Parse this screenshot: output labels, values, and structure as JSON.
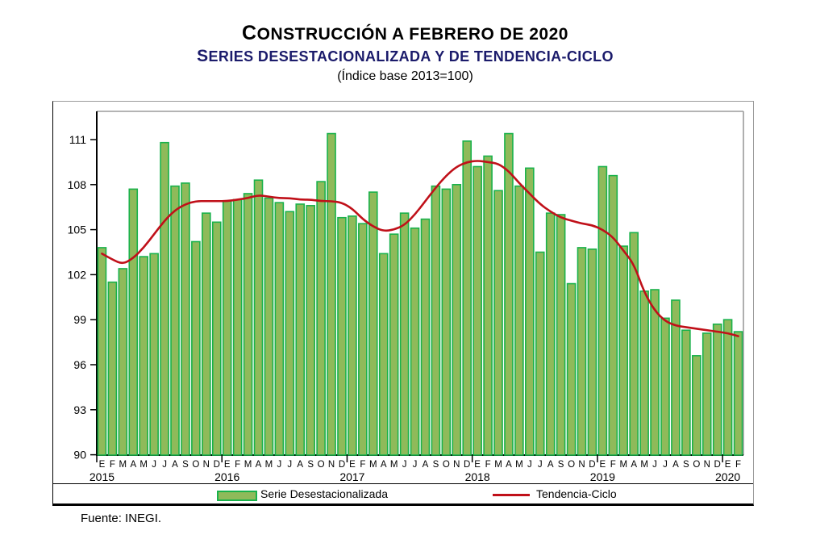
{
  "title": {
    "line1": "CONSTRUCCIÓN A FEBRERO DE 2020",
    "line2": "SERIES DESESTACIONALIZADA Y DE TENDENCIA-CICLO",
    "line3": "(Índice base 2013=100)"
  },
  "legend": {
    "bars_label": "Serie Desestacionalizada",
    "line_label": "Tendencia-Ciclo"
  },
  "source": "Fuente: INEGI.",
  "colors": {
    "bar_fill": "#8fba5a",
    "bar_stroke": "#19b24b",
    "trend_line": "#c01019",
    "axis": "#000000",
    "frame_gray": "#9b9b9b",
    "title2": "#1b1b6b"
  },
  "chart_data": {
    "type": "bar",
    "title": "Construcción a febrero de 2020, series desestacionalizada y de tendencia-ciclo (índice base 2013=100)",
    "xlabel": "",
    "ylabel": "",
    "ylim": [
      90,
      113
    ],
    "yticks": [
      90,
      93,
      96,
      99,
      102,
      105,
      108,
      111
    ],
    "grid": false,
    "legend_position": "bottom",
    "month_letters": [
      "E",
      "F",
      "M",
      "A",
      "M",
      "J",
      "J",
      "A",
      "S",
      "O",
      "N",
      "D"
    ],
    "years": [
      {
        "label": "2015",
        "months": 12
      },
      {
        "label": "2016",
        "months": 12
      },
      {
        "label": "2017",
        "months": 12
      },
      {
        "label": "2018",
        "months": 12
      },
      {
        "label": "2019",
        "months": 12
      },
      {
        "label": "2020",
        "months": 2
      }
    ],
    "series": [
      {
        "name": "Serie Desestacionalizada",
        "type": "bar",
        "values": [
          103.8,
          101.5,
          102.4,
          107.7,
          103.2,
          103.4,
          110.8,
          107.9,
          108.1,
          104.2,
          106.1,
          105.5,
          106.9,
          107.0,
          107.4,
          108.3,
          107.1,
          106.8,
          106.2,
          106.7,
          106.6,
          108.2,
          111.4,
          105.8,
          105.9,
          105.4,
          107.5,
          103.4,
          104.7,
          106.1,
          105.1,
          105.7,
          107.9,
          107.7,
          108.0,
          110.9,
          109.2,
          109.9,
          107.6,
          111.4,
          107.9,
          109.1,
          103.5,
          106.1,
          106.0,
          101.4,
          103.8,
          103.7,
          109.2,
          108.6,
          103.9,
          104.8,
          100.9,
          101.0,
          99.1,
          100.3,
          98.3,
          96.6,
          98.1,
          98.7,
          99.0,
          98.2
        ]
      },
      {
        "name": "Tendencia-Ciclo",
        "type": "line",
        "values": [
          103.4,
          103.0,
          102.7,
          103.1,
          103.8,
          104.7,
          105.6,
          106.3,
          106.7,
          106.9,
          106.9,
          106.9,
          106.9,
          107.0,
          107.1,
          107.3,
          107.2,
          107.1,
          107.1,
          107.0,
          107.0,
          106.9,
          106.9,
          106.8,
          106.4,
          105.7,
          105.2,
          104.9,
          105.0,
          105.3,
          106.0,
          106.9,
          107.8,
          108.6,
          109.2,
          109.5,
          109.6,
          109.5,
          109.4,
          108.9,
          108.1,
          107.4,
          106.7,
          106.2,
          105.8,
          105.6,
          105.4,
          105.3,
          105.0,
          104.5,
          103.6,
          102.7,
          100.8,
          99.6,
          98.9,
          98.6,
          98.5,
          98.4,
          98.3,
          98.2,
          98.1,
          97.9
        ]
      }
    ]
  }
}
